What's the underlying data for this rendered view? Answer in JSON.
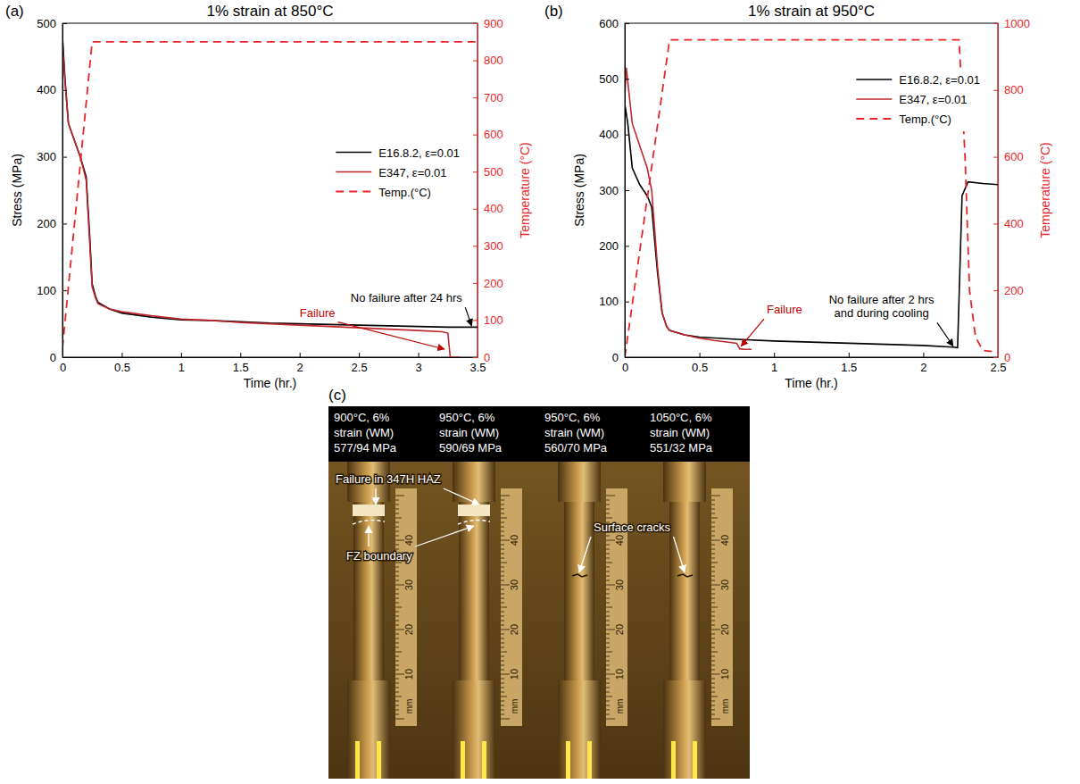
{
  "chart_data": [
    {
      "type": "line",
      "panel_label": "(a)",
      "title": "1% strain at 850°C",
      "x_label": "Time (hr.)",
      "y_label": "Stress (MPa)",
      "y2_label": "Temperature (°C)",
      "xlim": [
        0,
        3.5
      ],
      "xticks": [
        0,
        0.5,
        1,
        1.5,
        2,
        2.5,
        3,
        3.5
      ],
      "ylim": [
        0,
        500
      ],
      "yticks": [
        0,
        100,
        200,
        300,
        400,
        500
      ],
      "y2lim": [
        0,
        900
      ],
      "y2ticks": [
        0,
        100,
        200,
        300,
        400,
        500,
        600,
        700,
        800,
        900
      ],
      "legend": "right",
      "series": [
        {
          "name": "E16.8.2, ε=0.01",
          "color": "#000000",
          "line_style": "solid",
          "x": [
            0,
            0.02,
            0.05,
            0.1,
            0.15,
            0.2,
            0.23,
            0.25,
            0.28,
            0.3,
            0.4,
            0.5,
            0.75,
            1,
            1.25,
            1.5,
            1.75,
            2,
            2.25,
            2.5,
            2.75,
            3,
            3.25,
            3.5
          ],
          "values": [
            480,
            420,
            350,
            325,
            300,
            270,
            180,
            110,
            90,
            82,
            72,
            66,
            60,
            56,
            55,
            53,
            51,
            50,
            49,
            48,
            47,
            46,
            45,
            45
          ]
        },
        {
          "name": "E347, ε=0.01",
          "color": "#c0272d",
          "line_style": "solid",
          "x": [
            0,
            0.02,
            0.05,
            0.1,
            0.15,
            0.2,
            0.23,
            0.25,
            0.28,
            0.3,
            0.4,
            0.5,
            0.75,
            1,
            1.25,
            1.5,
            1.75,
            2,
            2.25,
            2.5,
            2.75,
            3,
            3.2,
            3.25,
            3.27,
            3.35
          ],
          "values": [
            470,
            415,
            350,
            325,
            300,
            265,
            170,
            105,
            88,
            80,
            72,
            68,
            62,
            57,
            55,
            52,
            50,
            48,
            46,
            44,
            42,
            40,
            38,
            36,
            0,
            0
          ]
        },
        {
          "name": "Temp.(°C)",
          "color": "#e8262a",
          "line_style": "dashed",
          "axis": "y2",
          "x": [
            0,
            0.25,
            3.5
          ],
          "values": [
            25,
            850,
            850
          ]
        }
      ],
      "annotations": [
        {
          "lines": [
            "No failure after 24 hrs"
          ],
          "x": 2.9,
          "y": 88,
          "arrow_to": [
            3.45,
            47
          ],
          "color": "#000000"
        },
        {
          "lines": [
            "Failure"
          ],
          "x": 2.15,
          "y": 66,
          "arrow_to": [
            3.22,
            12
          ],
          "color": "#c00000"
        }
      ]
    },
    {
      "type": "line",
      "panel_label": "(b)",
      "title": "1% strain at 950°C",
      "x_label": "Time (hr.)",
      "y_label": "Stress (MPa)",
      "y2_label": "Temperature (°C)",
      "xlim": [
        0,
        2.5
      ],
      "xticks": [
        0,
        0.5,
        1,
        1.5,
        2,
        2.5
      ],
      "ylim": [
        0,
        600
      ],
      "yticks": [
        0,
        100,
        200,
        300,
        400,
        500,
        600
      ],
      "y2lim": [
        0,
        1000
      ],
      "y2ticks": [
        0,
        200,
        400,
        600,
        800,
        1000
      ],
      "legend": "upper right",
      "series": [
        {
          "name": "E16.8.2, ε=0.01",
          "color": "#000000",
          "line_style": "solid",
          "x": [
            0,
            0.02,
            0.05,
            0.1,
            0.15,
            0.18,
            0.22,
            0.25,
            0.28,
            0.3,
            0.4,
            0.5,
            0.75,
            1,
            1.25,
            1.5,
            1.75,
            2,
            2.2,
            2.23,
            2.26,
            2.3,
            2.4,
            2.5
          ],
          "values": [
            455,
            420,
            340,
            310,
            290,
            270,
            150,
            80,
            55,
            48,
            40,
            36,
            32,
            29,
            27,
            25,
            23,
            21,
            18,
            17,
            290,
            315,
            312,
            310
          ]
        },
        {
          "name": "E347, ε=0.01",
          "color": "#c0272d",
          "line_style": "solid",
          "x": [
            0,
            0.01,
            0.05,
            0.1,
            0.15,
            0.18,
            0.22,
            0.25,
            0.28,
            0.3,
            0.4,
            0.5,
            0.6,
            0.75,
            0.77,
            0.8,
            0.85
          ],
          "values": [
            470,
            520,
            420,
            380,
            340,
            300,
            160,
            80,
            55,
            48,
            40,
            34,
            30,
            25,
            15,
            14,
            14
          ]
        },
        {
          "name": "Temp.(°C)",
          "color": "#e8262a",
          "line_style": "dashed",
          "axis": "y2",
          "x": [
            0,
            0.3,
            2.24,
            2.28,
            2.31,
            2.35,
            2.4,
            2.5
          ],
          "values": [
            0,
            950,
            950,
            600,
            200,
            60,
            20,
            15
          ]
        }
      ],
      "annotations": [
        {
          "lines": [
            "No failure after 2 hrs",
            "and during cooling"
          ],
          "x": 1.72,
          "y": 90,
          "arrow_to": [
            2.2,
            20
          ],
          "color": "#000000"
        },
        {
          "lines": [
            "Failure"
          ],
          "x": 1.07,
          "y": 85,
          "arrow_to": [
            0.78,
            20
          ],
          "color": "#c00000"
        }
      ]
    }
  ],
  "image_panel": {
    "panel_label": "(c)",
    "headers": [
      {
        "lines": [
          "900°C, 6%",
          "strain (WM)",
          "577/94 MPa"
        ]
      },
      {
        "lines": [
          "950°C, 6%",
          "strain (WM)",
          "590/69 MPa"
        ]
      },
      {
        "lines": [
          "950°C, 6%",
          "strain (WM)",
          "560/70 MPa"
        ]
      },
      {
        "lines": [
          "1050°C, 6%",
          "strain (WM)",
          "551/32 MPa"
        ]
      }
    ],
    "annotations": [
      "Failure in 347H HAZ",
      "FZ boundary",
      "Surface cracks"
    ],
    "ruler_labels": [
      "10",
      "20",
      "30",
      "40"
    ],
    "ruler_unit": "mm"
  }
}
